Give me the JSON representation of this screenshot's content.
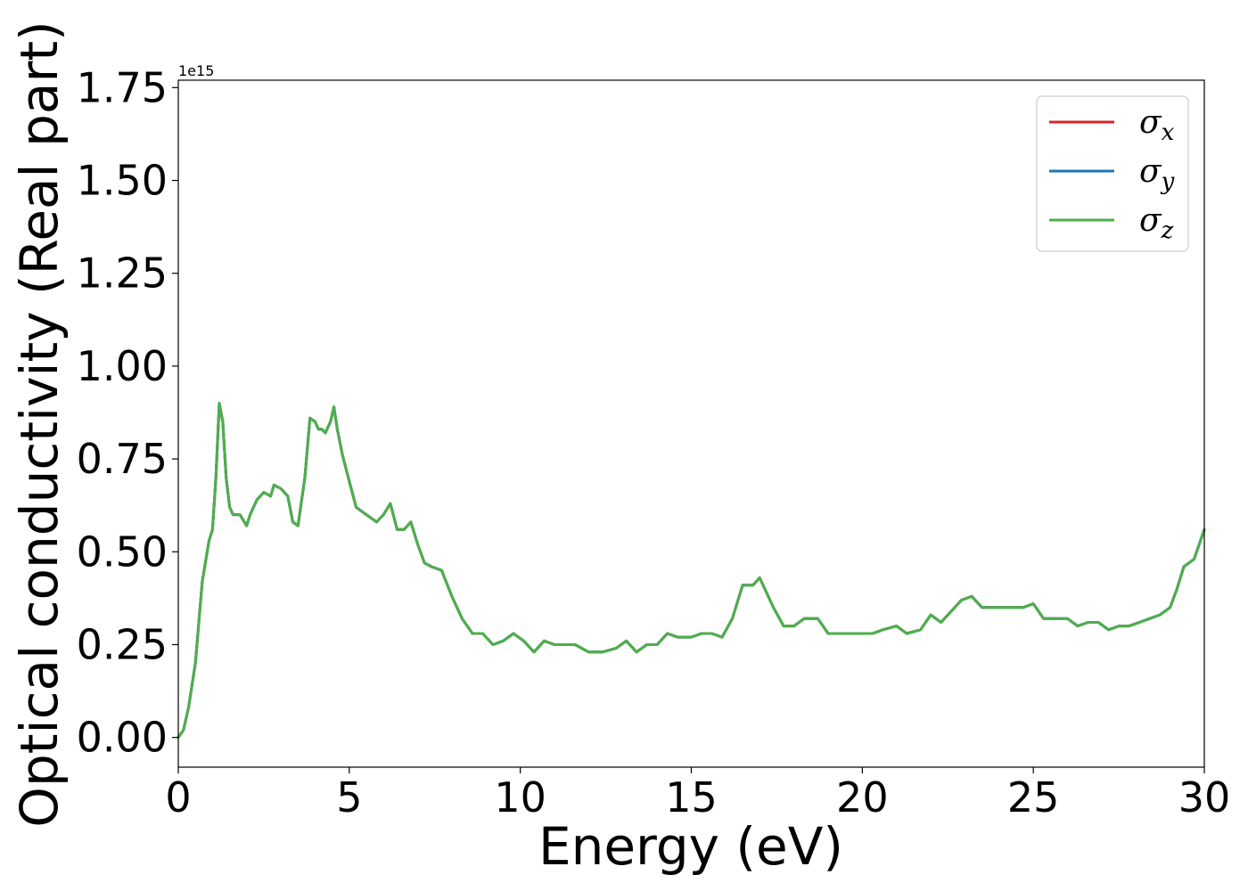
{
  "chart_data": {
    "type": "line",
    "title": "",
    "xlabel": "Energy (eV)",
    "ylabel": "Optical conductivity (Real part)",
    "y_offset_text": "1e15",
    "xlim": [
      0,
      30
    ],
    "ylim": [
      -0.08,
      1.77
    ],
    "x_ticks": [
      0,
      5,
      10,
      15,
      20,
      25,
      30
    ],
    "x_tick_labels": [
      "0",
      "5",
      "10",
      "15",
      "20",
      "25",
      "30"
    ],
    "y_ticks": [
      0.0,
      0.25,
      0.5,
      0.75,
      1.0,
      1.25,
      1.5,
      1.75
    ],
    "y_tick_labels": [
      "0.00",
      "0.25",
      "0.50",
      "0.75",
      "1.00",
      "1.25",
      "1.50",
      "1.75"
    ],
    "grid": false,
    "legend_position": "top-right",
    "series": [
      {
        "name": "σx",
        "base": "σ",
        "sub": "x",
        "color": "#d62728",
        "x": [
          0,
          0.15,
          0.3,
          0.5,
          0.7,
          0.9,
          1.0,
          1.1,
          1.2,
          1.3,
          1.4,
          1.5,
          1.6,
          1.8,
          2.0,
          2.1,
          2.3,
          2.5,
          2.7,
          2.8,
          3.0,
          3.2,
          3.35,
          3.5,
          3.7,
          3.85,
          4.0,
          4.1,
          4.2,
          4.3,
          4.45,
          4.55,
          4.65,
          4.8,
          5.0,
          5.2,
          5.5,
          5.8,
          6.0,
          6.2,
          6.4,
          6.6,
          6.8,
          7.0,
          7.2,
          7.4,
          7.7,
          8.0,
          8.3,
          8.6,
          8.9,
          9.2,
          9.5,
          9.8,
          10.1,
          10.4,
          10.7,
          11.0,
          11.3,
          11.6,
          12.0,
          12.4,
          12.8,
          13.1,
          13.4,
          13.7,
          14.0,
          14.3,
          14.6,
          15.0,
          15.3,
          15.6,
          15.9,
          16.2,
          16.5,
          16.8,
          17.0,
          17.2,
          17.4,
          17.7,
          18.0,
          18.3,
          18.7,
          19.0,
          19.3,
          19.6,
          20.0,
          20.3,
          20.6,
          21.0,
          21.3,
          21.7,
          22.0,
          22.3,
          22.6,
          22.9,
          23.2,
          23.5,
          23.8,
          24.1,
          24.4,
          24.7,
          25.0,
          25.3,
          25.7,
          26.0,
          26.3,
          26.6,
          26.9,
          27.2,
          27.5,
          27.8,
          28.1,
          28.4,
          28.7,
          29.0,
          29.2,
          29.4,
          29.7,
          30.0
        ],
        "y": [
          0.0,
          0.02,
          0.08,
          0.2,
          0.42,
          0.53,
          0.56,
          0.7,
          0.9,
          0.85,
          0.7,
          0.62,
          0.6,
          0.6,
          0.57,
          0.6,
          0.64,
          0.66,
          0.65,
          0.68,
          0.67,
          0.65,
          0.58,
          0.57,
          0.7,
          0.86,
          0.85,
          0.83,
          0.83,
          0.82,
          0.85,
          0.89,
          0.83,
          0.76,
          0.69,
          0.62,
          0.6,
          0.58,
          0.6,
          0.63,
          0.56,
          0.56,
          0.58,
          0.52,
          0.47,
          0.46,
          0.45,
          0.38,
          0.32,
          0.28,
          0.28,
          0.25,
          0.26,
          0.28,
          0.26,
          0.23,
          0.26,
          0.25,
          0.25,
          0.25,
          0.23,
          0.23,
          0.24,
          0.26,
          0.23,
          0.25,
          0.25,
          0.28,
          0.27,
          0.27,
          0.28,
          0.28,
          0.27,
          0.32,
          0.41,
          0.41,
          0.43,
          0.39,
          0.35,
          0.3,
          0.3,
          0.32,
          0.32,
          0.28,
          0.28,
          0.28,
          0.28,
          0.28,
          0.29,
          0.3,
          0.28,
          0.29,
          0.33,
          0.31,
          0.34,
          0.37,
          0.38,
          0.35,
          0.35,
          0.35,
          0.35,
          0.35,
          0.36,
          0.32,
          0.32,
          0.32,
          0.3,
          0.31,
          0.31,
          0.29,
          0.3,
          0.3,
          0.31,
          0.32,
          0.33,
          0.35,
          0.4,
          0.46,
          0.48,
          0.56
        ]
      },
      {
        "name": "σy",
        "base": "σ",
        "sub": "y",
        "color": "#1f77b4",
        "x": [
          0,
          0.15,
          0.3,
          0.5,
          0.7,
          0.9,
          1.0,
          1.1,
          1.2,
          1.3,
          1.4,
          1.5,
          1.6,
          1.8,
          2.0,
          2.1,
          2.3,
          2.5,
          2.7,
          2.8,
          3.0,
          3.2,
          3.35,
          3.5,
          3.7,
          3.85,
          4.0,
          4.1,
          4.2,
          4.3,
          4.45,
          4.55,
          4.65,
          4.8,
          5.0,
          5.2,
          5.5,
          5.8,
          6.0,
          6.2,
          6.4,
          6.6,
          6.8,
          7.0,
          7.2,
          7.4,
          7.7,
          8.0,
          8.3,
          8.6,
          8.9,
          9.2,
          9.5,
          9.8,
          10.1,
          10.4,
          10.7,
          11.0,
          11.3,
          11.6,
          12.0,
          12.4,
          12.8,
          13.1,
          13.4,
          13.7,
          14.0,
          14.3,
          14.6,
          15.0,
          15.3,
          15.6,
          15.9,
          16.2,
          16.5,
          16.8,
          17.0,
          17.2,
          17.4,
          17.7,
          18.0,
          18.3,
          18.7,
          19.0,
          19.3,
          19.6,
          20.0,
          20.3,
          20.6,
          21.0,
          21.3,
          21.7,
          22.0,
          22.3,
          22.6,
          22.9,
          23.2,
          23.5,
          23.8,
          24.1,
          24.4,
          24.7,
          25.0,
          25.3,
          25.7,
          26.0,
          26.3,
          26.6,
          26.9,
          27.2,
          27.5,
          27.8,
          28.1,
          28.4,
          28.7,
          29.0,
          29.2,
          29.4,
          29.7,
          30.0
        ],
        "y": [
          0.0,
          0.02,
          0.08,
          0.2,
          0.42,
          0.53,
          0.56,
          0.7,
          0.9,
          0.85,
          0.7,
          0.62,
          0.6,
          0.6,
          0.57,
          0.6,
          0.64,
          0.66,
          0.65,
          0.68,
          0.67,
          0.65,
          0.58,
          0.57,
          0.7,
          0.86,
          0.85,
          0.83,
          0.83,
          0.82,
          0.85,
          0.89,
          0.83,
          0.76,
          0.69,
          0.62,
          0.6,
          0.58,
          0.6,
          0.63,
          0.56,
          0.56,
          0.58,
          0.52,
          0.47,
          0.46,
          0.45,
          0.38,
          0.32,
          0.28,
          0.28,
          0.25,
          0.26,
          0.28,
          0.26,
          0.23,
          0.26,
          0.25,
          0.25,
          0.25,
          0.23,
          0.23,
          0.24,
          0.26,
          0.23,
          0.25,
          0.25,
          0.28,
          0.27,
          0.27,
          0.28,
          0.28,
          0.27,
          0.32,
          0.41,
          0.41,
          0.43,
          0.39,
          0.35,
          0.3,
          0.3,
          0.32,
          0.32,
          0.28,
          0.28,
          0.28,
          0.28,
          0.28,
          0.29,
          0.3,
          0.28,
          0.29,
          0.33,
          0.31,
          0.34,
          0.37,
          0.38,
          0.35,
          0.35,
          0.35,
          0.35,
          0.35,
          0.36,
          0.32,
          0.32,
          0.32,
          0.3,
          0.31,
          0.31,
          0.29,
          0.3,
          0.3,
          0.31,
          0.32,
          0.33,
          0.35,
          0.4,
          0.46,
          0.48,
          0.56
        ]
      },
      {
        "name": "σz",
        "base": "σ",
        "sub": "z",
        "color": "#4daf4a",
        "x": [
          0,
          0.15,
          0.3,
          0.5,
          0.7,
          0.9,
          1.0,
          1.1,
          1.2,
          1.3,
          1.4,
          1.5,
          1.6,
          1.8,
          2.0,
          2.1,
          2.3,
          2.5,
          2.7,
          2.8,
          3.0,
          3.2,
          3.35,
          3.5,
          3.7,
          3.85,
          4.0,
          4.1,
          4.2,
          4.3,
          4.45,
          4.55,
          4.65,
          4.8,
          5.0,
          5.2,
          5.5,
          5.8,
          6.0,
          6.2,
          6.4,
          6.6,
          6.8,
          7.0,
          7.2,
          7.4,
          7.7,
          8.0,
          8.3,
          8.6,
          8.9,
          9.2,
          9.5,
          9.8,
          10.1,
          10.4,
          10.7,
          11.0,
          11.3,
          11.6,
          12.0,
          12.4,
          12.8,
          13.1,
          13.4,
          13.7,
          14.0,
          14.3,
          14.6,
          15.0,
          15.3,
          15.6,
          15.9,
          16.2,
          16.5,
          16.8,
          17.0,
          17.2,
          17.4,
          17.7,
          18.0,
          18.3,
          18.7,
          19.0,
          19.3,
          19.6,
          20.0,
          20.3,
          20.6,
          21.0,
          21.3,
          21.7,
          22.0,
          22.3,
          22.6,
          22.9,
          23.2,
          23.5,
          23.8,
          24.1,
          24.4,
          24.7,
          25.0,
          25.3,
          25.7,
          26.0,
          26.3,
          26.6,
          26.9,
          27.2,
          27.5,
          27.8,
          28.1,
          28.4,
          28.7,
          29.0,
          29.2,
          29.4,
          29.7,
          30.0
        ],
        "y": [
          0.0,
          0.02,
          0.08,
          0.2,
          0.42,
          0.53,
          0.56,
          0.7,
          0.9,
          0.85,
          0.7,
          0.62,
          0.6,
          0.6,
          0.57,
          0.6,
          0.64,
          0.66,
          0.65,
          0.68,
          0.67,
          0.65,
          0.58,
          0.57,
          0.7,
          0.86,
          0.85,
          0.83,
          0.83,
          0.82,
          0.85,
          0.89,
          0.83,
          0.76,
          0.69,
          0.62,
          0.6,
          0.58,
          0.6,
          0.63,
          0.56,
          0.56,
          0.58,
          0.52,
          0.47,
          0.46,
          0.45,
          0.38,
          0.32,
          0.28,
          0.28,
          0.25,
          0.26,
          0.28,
          0.26,
          0.23,
          0.26,
          0.25,
          0.25,
          0.25,
          0.23,
          0.23,
          0.24,
          0.26,
          0.23,
          0.25,
          0.25,
          0.28,
          0.27,
          0.27,
          0.28,
          0.28,
          0.27,
          0.32,
          0.41,
          0.41,
          0.43,
          0.39,
          0.35,
          0.3,
          0.3,
          0.32,
          0.32,
          0.28,
          0.28,
          0.28,
          0.28,
          0.28,
          0.29,
          0.3,
          0.28,
          0.29,
          0.33,
          0.31,
          0.34,
          0.37,
          0.38,
          0.35,
          0.35,
          0.35,
          0.35,
          0.35,
          0.36,
          0.32,
          0.32,
          0.32,
          0.3,
          0.31,
          0.31,
          0.29,
          0.3,
          0.3,
          0.31,
          0.32,
          0.33,
          0.35,
          0.4,
          0.46,
          0.48,
          0.56
        ]
      }
    ]
  }
}
